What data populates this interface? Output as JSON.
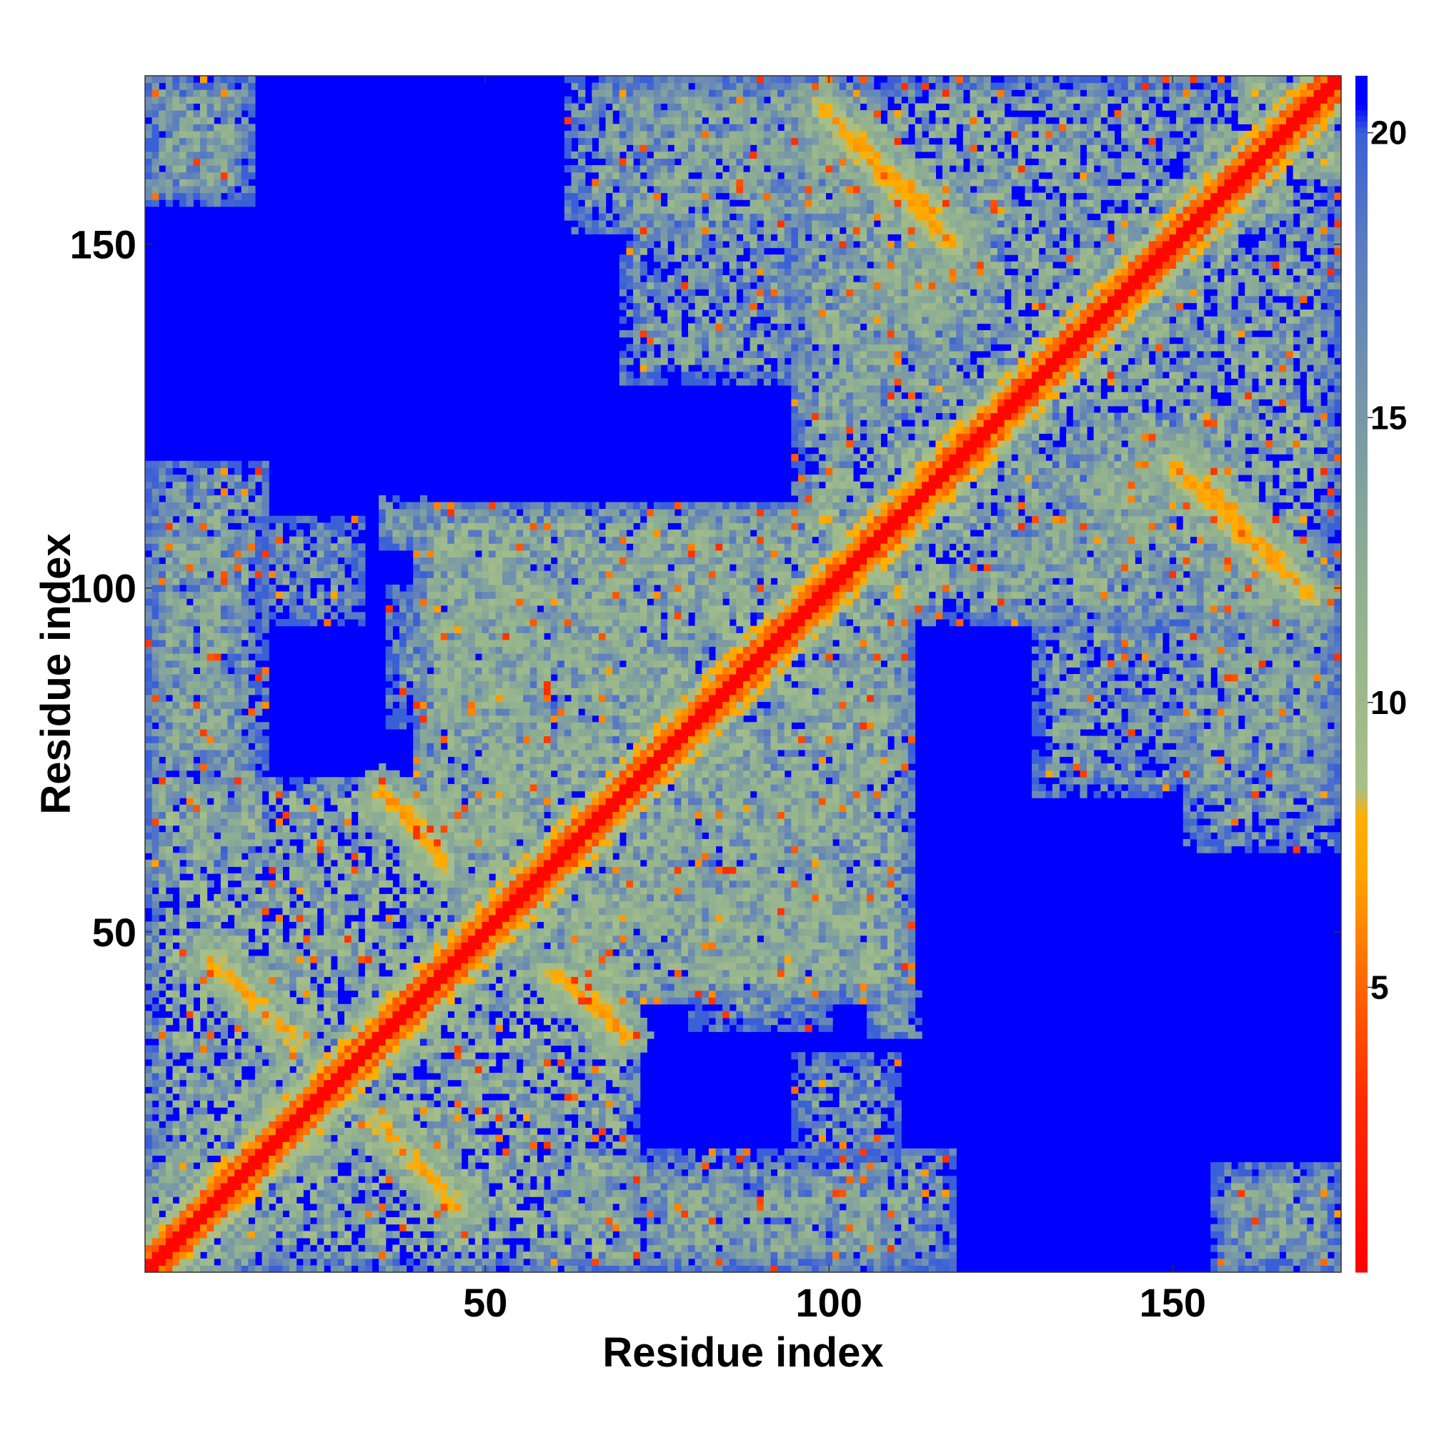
{
  "chart_data": {
    "type": "heatmap",
    "title": "",
    "xlabel": "Residue index",
    "ylabel": "Residue index",
    "n_residues": 174,
    "xlim": [
      1,
      174
    ],
    "ylim": [
      1,
      174
    ],
    "xticks": [
      50,
      100,
      150
    ],
    "yticks": [
      50,
      100,
      150
    ],
    "colorbar": {
      "range": [
        0,
        21
      ],
      "ticks": [
        5,
        10,
        15,
        20
      ],
      "stops": [
        {
          "value": 0,
          "color": "#ff0000"
        },
        {
          "value": 3,
          "color": "#ff2a00"
        },
        {
          "value": 5,
          "color": "#ff6400"
        },
        {
          "value": 7,
          "color": "#ffa500"
        },
        {
          "value": 8,
          "color": "#ffb000"
        },
        {
          "value": 8.5,
          "color": "#a8c088"
        },
        {
          "value": 12,
          "color": "#90b090"
        },
        {
          "value": 15,
          "color": "#7898a8"
        },
        {
          "value": 18,
          "color": "#5a7cc0"
        },
        {
          "value": 20,
          "color": "#3a60d8"
        },
        {
          "value": 20.5,
          "color": "#0000ff"
        },
        {
          "value": 21,
          "color": "#0000ff"
        }
      ]
    },
    "contact_segments": [
      {
        "a1": 30,
        "a2": 46,
        "b1": 27,
        "b2": 10,
        "value": 6,
        "width": 1.6
      },
      {
        "a1": 10,
        "a2": 27,
        "b1": 46,
        "b2": 30,
        "value": 6,
        "width": 1.6
      },
      {
        "a1": 10,
        "a2": 26,
        "b1": 4,
        "b2": 20,
        "value": 6,
        "width": 1.6
      },
      {
        "a1": 4,
        "a2": 20,
        "b1": 10,
        "b2": 26,
        "value": 6,
        "width": 1.6
      },
      {
        "a1": 160,
        "a2": 174,
        "b1": 158,
        "b2": 172,
        "value": 6,
        "width": 1.6
      },
      {
        "a1": 158,
        "a2": 172,
        "b1": 160,
        "b2": 174,
        "value": 6,
        "width": 1.6
      },
      {
        "a1": 163,
        "a2": 174,
        "b1": 172,
        "b2": 160,
        "value": 6,
        "width": 1.6
      },
      {
        "a1": 102,
        "a2": 118,
        "b1": 166,
        "b2": 150,
        "value": 6,
        "width": 1.6
      },
      {
        "a1": 150,
        "a2": 166,
        "b1": 118,
        "b2": 102,
        "value": 6,
        "width": 1.6
      },
      {
        "a1": 155,
        "a2": 170,
        "b1": 115,
        "b2": 99,
        "value": 6,
        "width": 1.6
      },
      {
        "a1": 99,
        "a2": 115,
        "b1": 170,
        "b2": 155,
        "value": 6,
        "width": 1.6
      },
      {
        "a1": 35,
        "a2": 42,
        "b1": 70,
        "b2": 63,
        "value": 6,
        "width": 1.6
      },
      {
        "a1": 63,
        "a2": 70,
        "b1": 42,
        "b2": 35,
        "value": 6,
        "width": 1.6
      },
      {
        "a1": 100,
        "a2": 108,
        "b1": 110,
        "b2": 102,
        "value": 6,
        "width": 1.6
      },
      {
        "a1": 102,
        "a2": 110,
        "b1": 108,
        "b2": 100,
        "value": 6,
        "width": 1.6
      },
      {
        "a1": 60,
        "a2": 68,
        "b1": 44,
        "b2": 38,
        "value": 6,
        "width": 1.6
      },
      {
        "a1": 38,
        "a2": 44,
        "b1": 68,
        "b2": 60,
        "value": 6,
        "width": 1.6
      }
    ],
    "contact_regions": [
      {
        "x1": 1,
        "x2": 70,
        "y1": 1,
        "y2": 72,
        "value": 13
      },
      {
        "x1": 60,
        "x2": 112,
        "y1": 40,
        "y2": 112,
        "value": 14
      },
      {
        "x1": 40,
        "x2": 112,
        "y1": 60,
        "y2": 112,
        "value": 14
      },
      {
        "x1": 95,
        "x2": 174,
        "y1": 95,
        "y2": 174,
        "value": 14
      },
      {
        "x1": 74,
        "x2": 114,
        "y1": 1,
        "y2": 14,
        "value": 15
      },
      {
        "x1": 156,
        "x2": 174,
        "y1": 1,
        "y2": 16,
        "value": 15
      },
      {
        "x1": 1,
        "x2": 18,
        "y1": 60,
        "y2": 118,
        "value": 15
      },
      {
        "x1": 1,
        "x2": 16,
        "y1": 157,
        "y2": 174,
        "value": 15
      },
      {
        "x1": 62,
        "x2": 104,
        "y1": 152,
        "y2": 174,
        "value": 15
      },
      {
        "x1": 104,
        "x2": 125,
        "y1": 136,
        "y2": 160,
        "value": 15
      },
      {
        "x1": 130,
        "x2": 174,
        "y1": 70,
        "y2": 96,
        "value": 15
      },
      {
        "x1": 125,
        "x2": 150,
        "y1": 95,
        "y2": 118,
        "value": 15
      },
      {
        "x1": 36,
        "x2": 58,
        "y1": 80,
        "y2": 100,
        "value": 15
      },
      {
        "x1": 18,
        "x2": 32,
        "y1": 95,
        "y2": 110,
        "value": 16
      },
      {
        "x1": 106,
        "x2": 113,
        "y1": 35,
        "y2": 42,
        "value": 14
      }
    ]
  }
}
